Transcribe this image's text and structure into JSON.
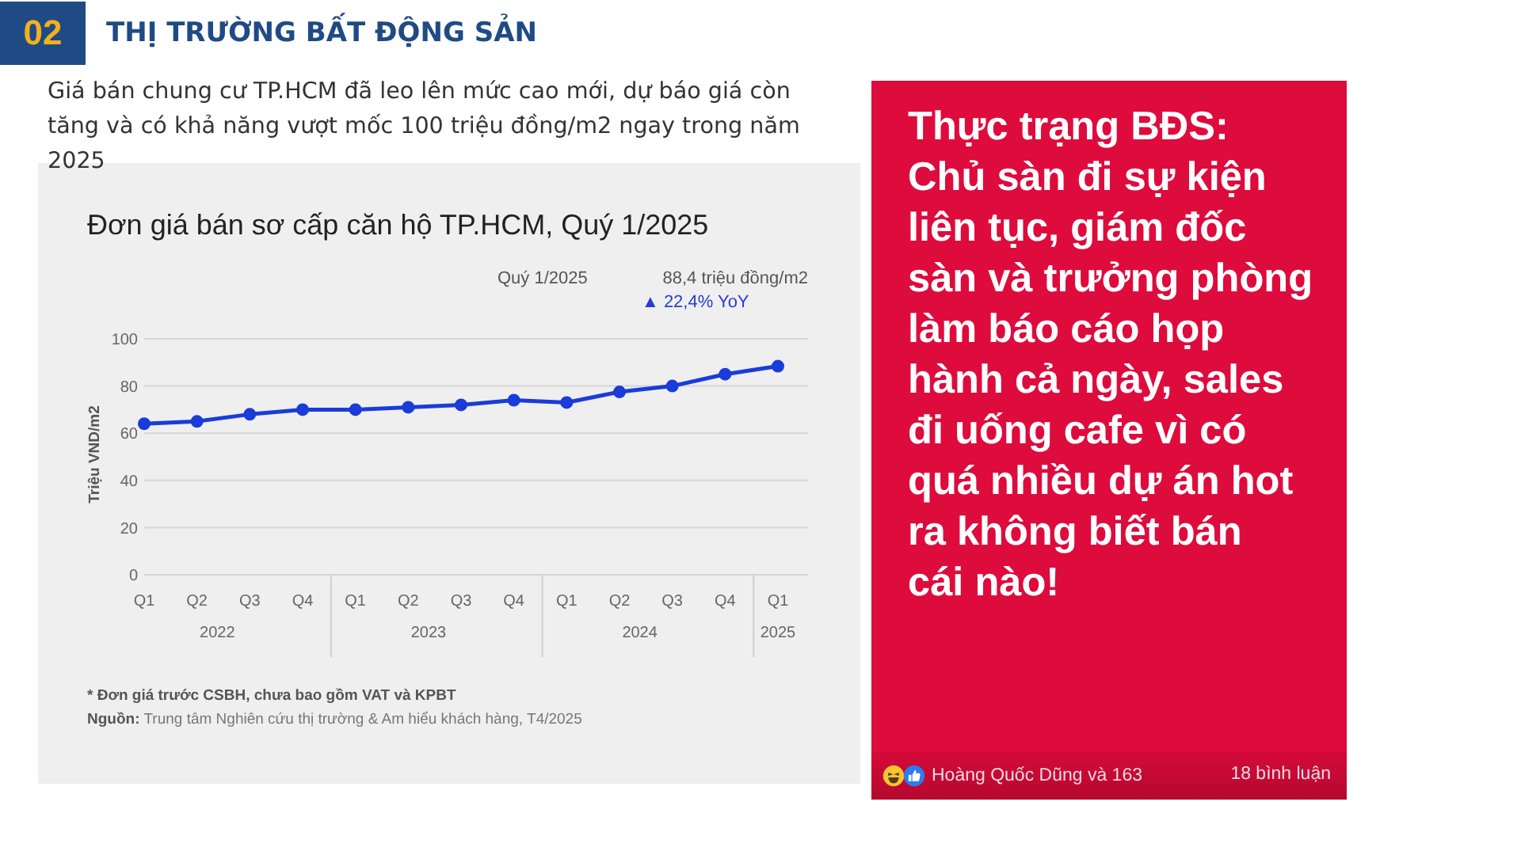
{
  "chart_data": [
    {
      "type": "other",
      "title": "THỊ TRƯỜNG BẤT ĐỘNG SẢN",
      "subtitle": "Giá bán chung cư TP.HCM đã leo lên mức cao mới, dự báo giá còn tăng và có khả năng vượt mốc 100 triệu đồng/m2 ngay trong năm 2025",
      "annotations": [
        "02"
      ]
    },
    {
      "type": "line",
      "title": "Đơn giá bán sơ cấp căn hộ TP.HCM, Quý 1/2025",
      "ylabel": "Triệu VND/m2",
      "categories": [
        "Q1",
        "Q2",
        "Q3",
        "Q4",
        "Q1",
        "Q2",
        "Q3",
        "Q4",
        "Q1",
        "Q2",
        "Q3",
        "Q4",
        "Q1"
      ],
      "series": [
        {
          "color": "#1a3cd8",
          "values": [
            64,
            65,
            68,
            70,
            70,
            71,
            72,
            74,
            73,
            77.5,
            80,
            85,
            88.4
          ]
        }
      ],
      "ylim": [
        0,
        100
      ],
      "yticks": [
        0,
        20,
        40,
        60,
        80,
        100
      ],
      "grid": "y",
      "marker": "circle",
      "line_style": "solid",
      "annotations": [
        "Quý 1/2025",
        "88,4 triệu đồng/m2",
        "▲ 22,4% YoY",
        "2022",
        "2023",
        "2024",
        "2025",
        "* Đơn giá trước CSBH, chưa bao gồm VAT và KPBT",
        "Nguồn: Trung tâm Nghiên cứu thị trường & Am hiểu khách hàng, T4/2025"
      ]
    },
    {
      "type": "other",
      "annotations": [
        "Thực trạng BĐS:\nChủ sàn đi sự kiện\nliên tục, giám đốc\nsàn và trưởng phòng\nlàm báo cáo họp\nhành cả ngày, sales\nđi uống cafe vì có\nquá nhiều dự án hot\nra không biết bán\ncái nào!",
        "Hoàng Quốc Dũng và 163",
        "18 bình luận"
      ]
    }
  ]
}
